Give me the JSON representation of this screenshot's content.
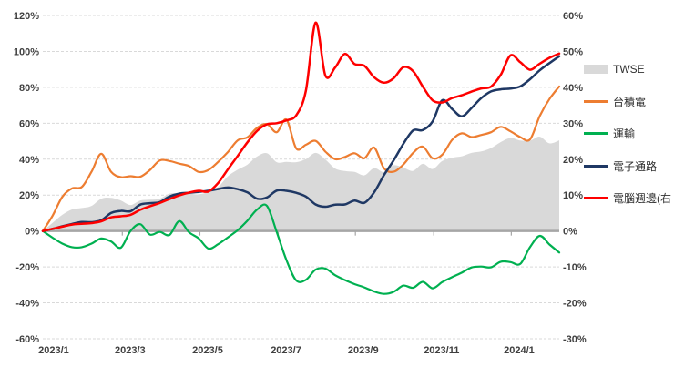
{
  "chart_data": {
    "type": "line",
    "title": "",
    "xlabel": "",
    "ylabel_left": "",
    "ylabel_right": "",
    "grid": true,
    "legend_position": "right",
    "x_unit": "months since 2023/1",
    "x_start": 0,
    "x_step": 0.25,
    "axes": {
      "left": {
        "min": -60,
        "max": 120,
        "step": 20,
        "tick_labels": [
          "120%",
          "100%",
          "80%",
          "60%",
          "40%",
          "20%",
          "0%",
          "-20%",
          "-40%",
          "-60%"
        ]
      },
      "right": {
        "min": -30,
        "max": 60,
        "step": 10,
        "tick_labels": [
          "60%",
          "50%",
          "40%",
          "30%",
          "20%",
          "10%",
          "0%",
          "-10%",
          "-20%",
          "-30%"
        ]
      }
    },
    "x_ticks": [
      {
        "label": "2023/1",
        "month": 0.28
      },
      {
        "label": "2023/3",
        "month": 2.24
      },
      {
        "label": "2023/5",
        "month": 4.23
      },
      {
        "label": "2023/7",
        "month": 6.24
      },
      {
        "label": "2023/9",
        "month": 8.22
      },
      {
        "label": "2023/11",
        "month": 10.23
      },
      {
        "label": "2024/1",
        "month": 12.22
      }
    ],
    "colors": {
      "twse": "#D9D9D9",
      "tsmc": "#ED7D31",
      "transport": "#00B050",
      "electronics_channel": "#1F3864",
      "computer_peripheral": "#FE0000",
      "gridline": "#D9D9D9",
      "axis_line": "#A6A6A6",
      "tick_text": "#3F3F3F"
    },
    "series": [
      {
        "name": "TWSE",
        "axis": "left",
        "style": "area",
        "color": "#D9D9D9",
        "width": 0,
        "values": [
          0,
          4.5,
          9,
          12,
          12.8,
          14,
          18,
          18.5,
          17,
          14.5,
          17,
          17.4,
          18,
          20.8,
          21,
          20.8,
          20.4,
          21.7,
          24.5,
          30.5,
          34.2,
          37,
          41.5,
          43.3,
          38.3,
          38.5,
          38.3,
          40,
          43.5,
          39.8,
          34.8,
          33.4,
          32.9,
          31,
          35,
          32.8,
          36.6,
          35.3,
          33.5,
          37.4,
          34.5,
          39,
          40.8,
          41.6,
          43.5,
          44.3,
          46.2,
          49.5,
          51.8,
          50.4,
          50.3,
          52.5,
          48.8,
          50.5
        ]
      },
      {
        "name": "台積電",
        "axis": "left",
        "style": "line",
        "color": "#ED7D31",
        "width": 2.2,
        "values": [
          0,
          8.5,
          19,
          23.7,
          24.5,
          33,
          43,
          33,
          30,
          30.5,
          30.2,
          34,
          39.3,
          39,
          37.5,
          36.2,
          32.9,
          34,
          38.5,
          44,
          50.5,
          52.2,
          57.5,
          59.5,
          55,
          62,
          46,
          48,
          50.2,
          44.2,
          40,
          41.2,
          43.3,
          40.5,
          46.5,
          35,
          33,
          37,
          43.5,
          47,
          40.5,
          42.5,
          50.7,
          54.4,
          52.3,
          53.5,
          55,
          58,
          55.5,
          52.3,
          51,
          64,
          73.5,
          80.5
        ]
      },
      {
        "name": "運輸",
        "axis": "left",
        "style": "line",
        "color": "#00B050",
        "width": 2.2,
        "values": [
          0,
          -3.7,
          -7,
          -9,
          -9,
          -7,
          -4.2,
          -5.8,
          -9.3,
          0,
          3.8,
          -2,
          -0.5,
          -2.2,
          5.5,
          -0.7,
          -4.1,
          -9.8,
          -7.3,
          -3.5,
          0.5,
          5.8,
          12,
          14,
          -0.5,
          -16.2,
          -27.5,
          -27.2,
          -21.5,
          -20.9,
          -24.6,
          -27.3,
          -29.6,
          -31.4,
          -33.7,
          -35,
          -33.9,
          -30.4,
          -31.6,
          -28.3,
          -31.9,
          -28.4,
          -25.7,
          -23.2,
          -20.3,
          -19.8,
          -20.2,
          -17.1,
          -17.3,
          -18.3,
          -9,
          -2.7,
          -7.5,
          -12
        ]
      },
      {
        "name": "電子通路",
        "axis": "left",
        "style": "line",
        "color": "#1F3864",
        "width": 2.5,
        "values": [
          0,
          1.2,
          2.6,
          3.9,
          5,
          4.9,
          6,
          10,
          11.2,
          11,
          14.7,
          15.5,
          16.1,
          19.2,
          20.8,
          21.3,
          21.8,
          22.4,
          23.4,
          24.2,
          23.3,
          21.5,
          18,
          18.7,
          22.5,
          22.4,
          21.3,
          19.2,
          14.8,
          13.5,
          14.7,
          14.8,
          16.9,
          15.7,
          21.5,
          31,
          39.3,
          48.5,
          56,
          56.2,
          61,
          72.8,
          68,
          63.8,
          68.5,
          74,
          77.7,
          78.9,
          79.3,
          80.5,
          84.5,
          89.5,
          93.5,
          97.3
        ]
      },
      {
        "name": "電腦週邊(右",
        "axis": "right",
        "style": "line",
        "color": "#FE0000",
        "width": 2.5,
        "values": [
          0,
          0.6,
          1.2,
          1.8,
          2,
          2.2,
          2.7,
          3.8,
          4.1,
          4.5,
          5.9,
          6.9,
          7.8,
          8.9,
          9.9,
          10.7,
          11.2,
          11,
          13.4,
          17.2,
          20.9,
          24.7,
          27.9,
          29.7,
          30,
          30.8,
          32.2,
          39,
          58,
          43.3,
          45.5,
          49.3,
          46.5,
          46,
          42.8,
          41.3,
          42.5,
          45.6,
          44.5,
          40.2,
          36.4,
          35.8,
          37,
          37.8,
          38.8,
          39.7,
          40.2,
          43.5,
          48.9,
          47,
          44.9,
          46.6,
          48.2,
          49.4
        ]
      }
    ]
  },
  "legend": {
    "items": [
      {
        "label": "TWSE"
      },
      {
        "label": "台積電"
      },
      {
        "label": "運輸"
      },
      {
        "label": "電子通路"
      },
      {
        "label": "電腦週邊(右"
      }
    ]
  }
}
